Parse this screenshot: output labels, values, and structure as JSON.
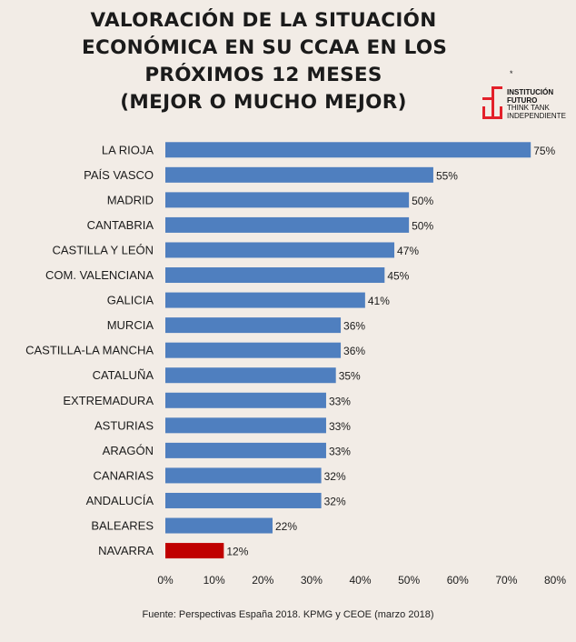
{
  "title_lines": [
    "VALORACIÓN DE LA SITUACIÓN",
    "ECONÓMICA EN SU CCAA EN LOS",
    "PRÓXIMOS 12 MESES",
    "(MEJOR O MUCHO MEJOR)"
  ],
  "logo": {
    "star": "*",
    "line1": "INSTITUCIÓN",
    "line2": "FUTURO",
    "line3": "THINK TANK",
    "line4": "INDEPENDIENTE"
  },
  "source": "Fuente: Perspectivas España 2018. KPMG y CEOE (marzo 2018)",
  "colors": {
    "background": "#f2ece6",
    "bar": "#4f7fbf",
    "highlight": "#c00000",
    "logo_red": "#e3202a"
  },
  "chart_data": {
    "type": "bar",
    "orientation": "horizontal",
    "title": "VALORACIÓN DE LA SITUACIÓN ECONÓMICA EN SU CCAA EN LOS PRÓXIMOS 12 MESES (MEJOR O MUCHO MEJOR)",
    "categories": [
      "LA RIOJA",
      "PAÍS VASCO",
      "MADRID",
      "CANTABRIA",
      "CASTILLA Y LEÓN",
      "COM. VALENCIANA",
      "GALICIA",
      "MURCIA",
      "CASTILLA-LA MANCHA",
      "CATALUÑA",
      "EXTREMADURA",
      "ASTURIAS",
      "ARAGÓN",
      "CANARIAS",
      "ANDALUCÍA",
      "BALEARES",
      "NAVARRA"
    ],
    "values": [
      75,
      55,
      50,
      50,
      47,
      45,
      41,
      36,
      36,
      35,
      33,
      33,
      33,
      32,
      32,
      22,
      12
    ],
    "value_labels": [
      "75%",
      "55%",
      "50%",
      "50%",
      "47%",
      "45%",
      "41%",
      "36%",
      "36%",
      "35%",
      "33%",
      "33%",
      "33%",
      "32%",
      "32%",
      "22%",
      "12%"
    ],
    "highlight_category": "NAVARRA",
    "x_ticks": [
      0,
      10,
      20,
      30,
      40,
      50,
      60,
      70,
      80
    ],
    "x_tick_labels": [
      "0%",
      "10%",
      "20%",
      "30%",
      "40%",
      "50%",
      "60%",
      "70%",
      "80%"
    ],
    "xlim": [
      0,
      80
    ],
    "xlabel": "",
    "ylabel": "",
    "grid": false,
    "legend": "none"
  }
}
